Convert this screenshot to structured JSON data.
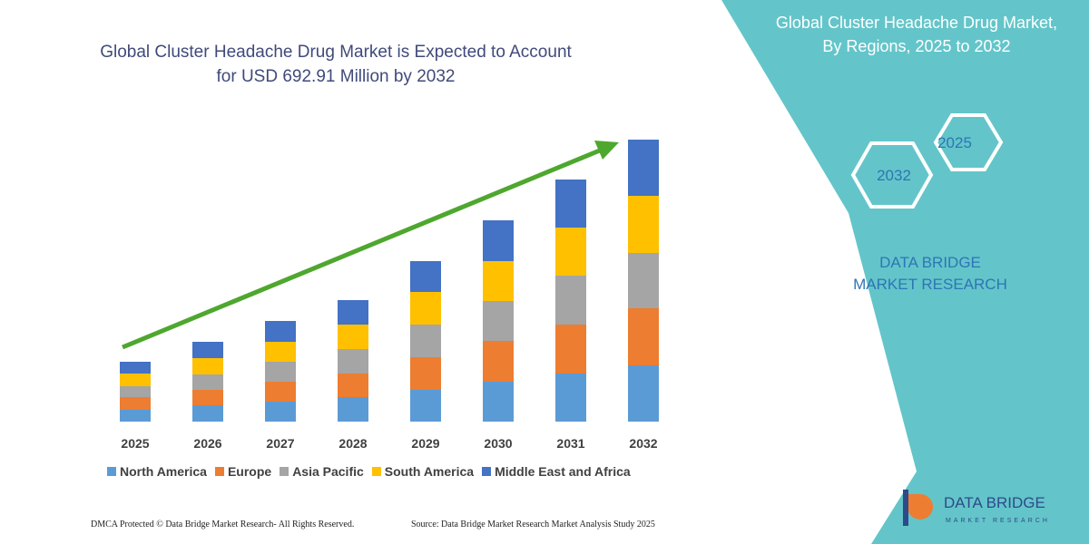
{
  "chart_data": {
    "type": "stacked_bar",
    "title": "Global Cluster Headache Drug Market is Expected to Account for USD 692.91 Million by 2032",
    "categories": [
      "2025",
      "2026",
      "2027",
      "2028",
      "2029",
      "2030",
      "2031",
      "2032"
    ],
    "series": [
      {
        "name": "North America",
        "color": "#5b9bd5",
        "values": [
          13,
          18,
          22,
          27,
          35,
          44,
          53,
          62
        ]
      },
      {
        "name": "Europe",
        "color": "#ed7d31",
        "values": [
          14,
          17,
          22,
          26,
          36,
          45,
          54,
          63
        ]
      },
      {
        "name": "Asia Pacific",
        "color": "#a5a5a5",
        "values": [
          12,
          17,
          22,
          27,
          36,
          44,
          54,
          61
        ]
      },
      {
        "name": "South America",
        "color": "#ffc000",
        "values": [
          14,
          18,
          22,
          27,
          36,
          44,
          53,
          63
        ]
      },
      {
        "name": "Middle East and Africa",
        "color": "#4472c4",
        "values": [
          13,
          18,
          23,
          27,
          34,
          45,
          53,
          62
        ]
      }
    ]
  },
  "side_panel": {
    "title": "Global Cluster Headache Drug Market, By Regions, 2025 to 2032",
    "hexagons": [
      "2032",
      "2025"
    ],
    "brand": "DATA BRIDGE MARKET RESEARCH"
  },
  "footer": {
    "notice": "DMCA Protected © Data Bridge Market Research- All Rights Reserved.",
    "source": "Source: Data Bridge Market Research Market Analysis Study 2025"
  },
  "logo": {
    "name": "DATA BRIDGE",
    "tagline": "MARKET RESEARCH"
  }
}
